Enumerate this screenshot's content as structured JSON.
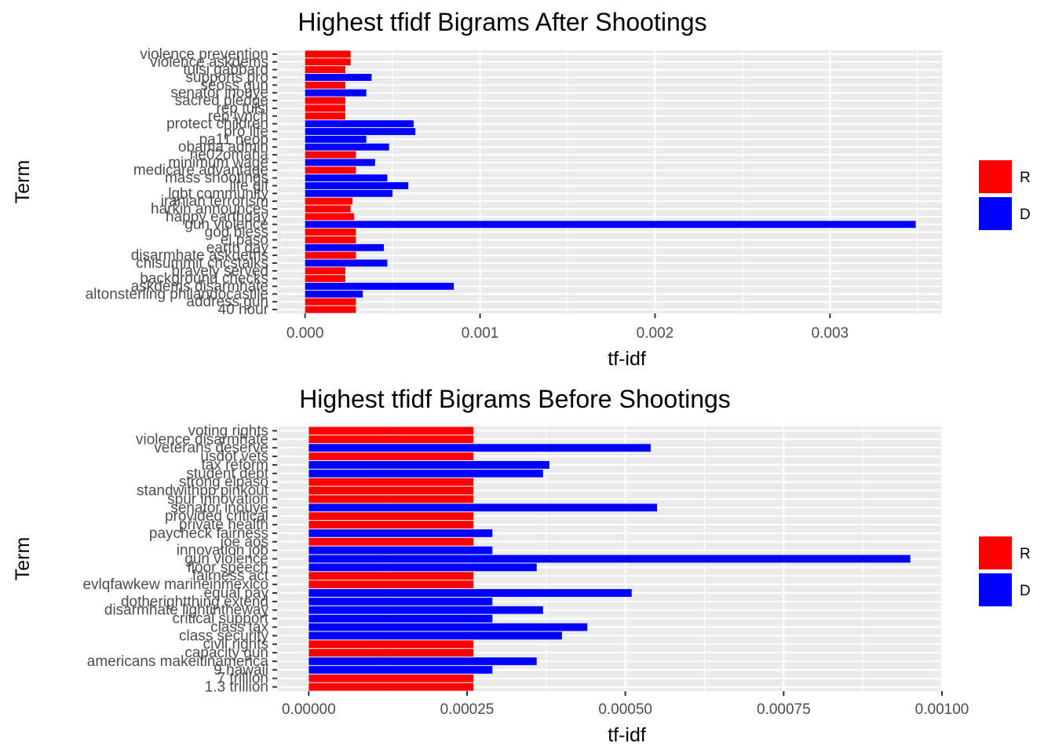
{
  "colors": {
    "R": "#ff0000",
    "D": "#0000ff",
    "panel": "#ebebeb",
    "grid": "#ffffff"
  },
  "chart_data": [
    {
      "type": "bar",
      "orientation": "horizontal",
      "title": "Highest tfidf Bigrams After Shootings",
      "xlabel": "tf-idf",
      "ylabel": "Term",
      "xlim": [
        -0.00016,
        0.00364
      ],
      "xticks": [
        0,
        0.001,
        0.002,
        0.003
      ],
      "xtick_labels": [
        "0.000",
        "0.001",
        "0.002",
        "0.003"
      ],
      "grid": true,
      "legend": {
        "placement": "right",
        "entries": [
          "R",
          "D"
        ]
      },
      "categories": [
        "violence prevention",
        "violence askdems",
        "tulsi gabbard",
        "supports pro",
        "seoss gun",
        "senator inouye",
        "sacred pledge",
        "rep tulsi",
        "rep lynch",
        "protect children",
        "pro life",
        "pa11 neop",
        "obama admin",
        "ne02omaha",
        "minimum wage",
        "medicare advantage",
        "mass shootings",
        "life gif",
        "lgbt community",
        "iranian terrorism",
        "harkin announces",
        "happy earthday",
        "gun violence",
        "god bless",
        "el paso",
        "earth day",
        "disarmhate askdems",
        "chisummit chcstalks",
        "bravely served",
        "background checks",
        "askdems disarmhate",
        "altonsterling philandocastile",
        "address gun",
        "40 hour"
      ],
      "parties": [
        "R",
        "R",
        "R",
        "D",
        "R",
        "D",
        "R",
        "R",
        "R",
        "D",
        "D",
        "D",
        "D",
        "R",
        "D",
        "R",
        "D",
        "D",
        "D",
        "R",
        "R",
        "R",
        "D",
        "R",
        "R",
        "D",
        "R",
        "D",
        "R",
        "R",
        "D",
        "D",
        "R",
        "R"
      ],
      "values": [
        0.00026,
        0.00026,
        0.00023,
        0.00038,
        0.00023,
        0.00035,
        0.00023,
        0.00023,
        0.00023,
        0.00062,
        0.00063,
        0.00035,
        0.00048,
        0.00029,
        0.0004,
        0.00029,
        0.00047,
        0.00059,
        0.0005,
        0.00027,
        0.00026,
        0.00028,
        0.00349,
        0.00029,
        0.00029,
        0.00045,
        0.00029,
        0.00047,
        0.00023,
        0.00023,
        0.00085,
        0.00033,
        0.00029,
        0.00029
      ]
    },
    {
      "type": "bar",
      "orientation": "horizontal",
      "title": "Highest tfidf Bigrams Before Shootings",
      "xlabel": "tf-idf",
      "ylabel": "Term",
      "xlim": [
        -5e-05,
        0.001
      ],
      "xticks": [
        0,
        0.00025,
        0.0005,
        0.00075,
        0.001
      ],
      "xtick_labels": [
        "0.00000",
        "0.00025",
        "0.00050",
        "0.00075",
        "0.00100"
      ],
      "grid": true,
      "legend": {
        "placement": "right",
        "entries": [
          "R",
          "D"
        ]
      },
      "categories": [
        "voting rights",
        "violence disarmhate",
        "veterans deserve",
        "usdot vets",
        "tax reform",
        "student debt",
        "strong elpaso",
        "standwithpp pinkout",
        "spur innovation",
        "senator inouye",
        "provided critical",
        "private health",
        "paycheck fairness",
        "joe aos",
        "innovation job",
        "gun violence",
        "floor speech",
        "fairness act",
        "evlqfawkew marineinmexico",
        "equal pay",
        "dotherightthing extend",
        "disarmhate lightintheway",
        "critical support",
        "class tax",
        "class security",
        "civil rights",
        "capacity gun",
        "americans makeitinamerica",
        "9 hawaii",
        "7 trillion",
        "1.3 trillion"
      ],
      "parties": [
        "R",
        "R",
        "D",
        "R",
        "D",
        "D",
        "R",
        "R",
        "R",
        "D",
        "R",
        "R",
        "D",
        "R",
        "D",
        "D",
        "D",
        "R",
        "R",
        "D",
        "D",
        "D",
        "D",
        "D",
        "D",
        "R",
        "R",
        "D",
        "D",
        "R",
        "R"
      ],
      "values": [
        0.00026,
        0.00026,
        0.00054,
        0.00026,
        0.00038,
        0.00037,
        0.00026,
        0.00026,
        0.00026,
        0.00055,
        0.00026,
        0.00026,
        0.00029,
        0.00026,
        0.00029,
        0.00095,
        0.00036,
        0.00026,
        0.00026,
        0.00051,
        0.00029,
        0.00037,
        0.00029,
        0.00044,
        0.0004,
        0.00026,
        0.00026,
        0.00036,
        0.00029,
        0.00026,
        0.00026
      ]
    }
  ]
}
